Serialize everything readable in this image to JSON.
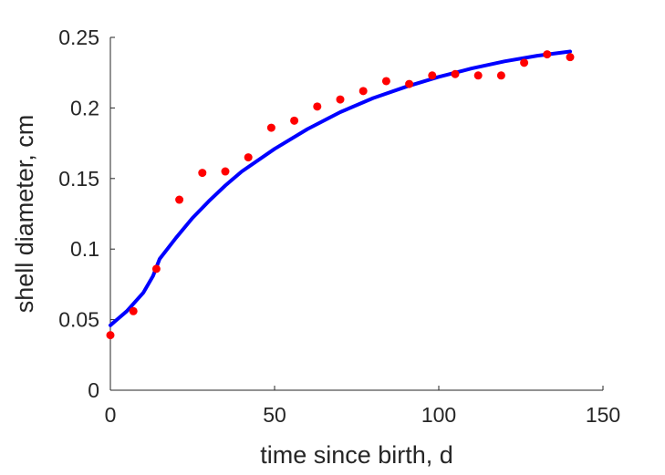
{
  "chart_data": {
    "type": "scatter",
    "xlabel": "time since birth, d",
    "ylabel": "shell diameter, cm",
    "xlim": [
      0,
      150
    ],
    "ylim": [
      0,
      0.25
    ],
    "xticks": [
      0,
      50,
      100,
      150
    ],
    "xtick_labels": [
      "0",
      "50",
      "100",
      "150"
    ],
    "yticks": [
      0,
      0.05,
      0.1,
      0.15,
      0.2,
      0.25
    ],
    "ytick_labels": [
      "0",
      "0.05",
      "0.1",
      "0.15",
      "0.2",
      "0.25"
    ],
    "grid": false,
    "box": false,
    "series": [
      {
        "kind": "points",
        "color": "#ff0000",
        "x": [
          0,
          7,
          14,
          21,
          28,
          35,
          42,
          49,
          56,
          63,
          70,
          77,
          84,
          91,
          98,
          105,
          112,
          119,
          126,
          133,
          140
        ],
        "y": [
          0.039,
          0.056,
          0.086,
          0.135,
          0.154,
          0.155,
          0.165,
          0.186,
          0.191,
          0.201,
          0.206,
          0.212,
          0.219,
          0.217,
          0.223,
          0.224,
          0.223,
          0.223,
          0.232,
          0.238,
          0.236
        ]
      },
      {
        "kind": "line",
        "color": "#0000ff",
        "x": [
          0,
          5,
          10,
          13,
          15,
          20,
          25,
          30,
          35,
          40,
          50,
          60,
          70,
          80,
          90,
          100,
          110,
          120,
          130,
          140
        ],
        "y": [
          0.046,
          0.056,
          0.069,
          0.081,
          0.093,
          0.108,
          0.122,
          0.134,
          0.145,
          0.155,
          0.171,
          0.185,
          0.197,
          0.207,
          0.215,
          0.222,
          0.228,
          0.233,
          0.237,
          0.24
        ]
      }
    ]
  }
}
